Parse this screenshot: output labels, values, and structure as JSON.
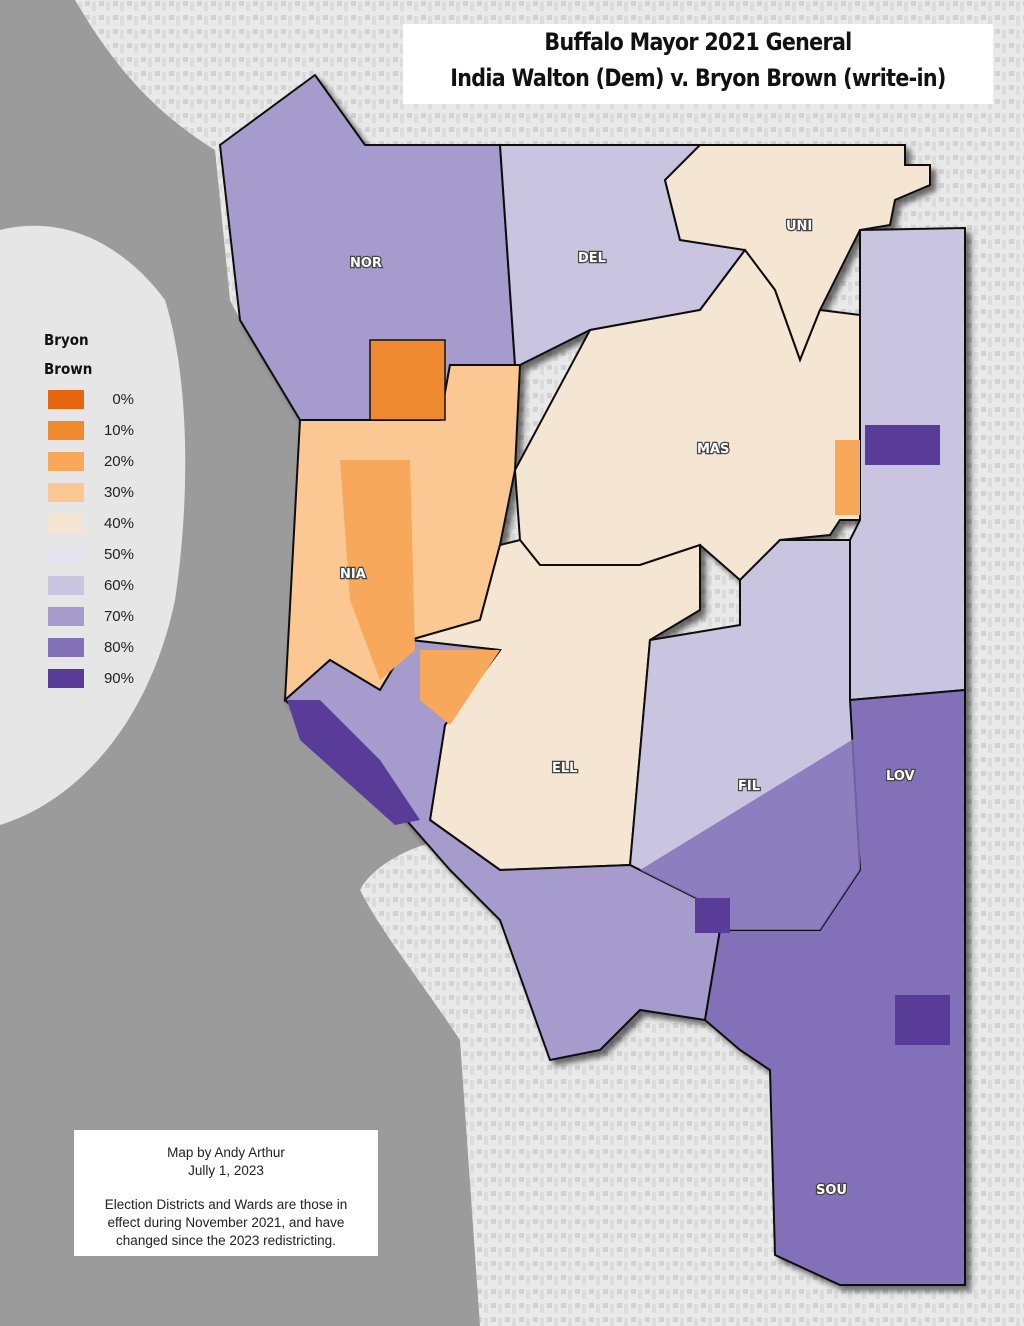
{
  "title": {
    "line1": "Buffalo Mayor 2021 General",
    "line2": "India Walton (Dem) v. Bryon Brown (write-in)"
  },
  "legend": {
    "title_line1": "Bryon",
    "title_line2": "Brown",
    "entries": [
      {
        "label": "0%",
        "color": "#e8650f"
      },
      {
        "label": "10%",
        "color": "#f08a30"
      },
      {
        "label": "20%",
        "color": "#f7a85a"
      },
      {
        "label": "30%",
        "color": "#fbc893"
      },
      {
        "label": "40%",
        "color": "#f5e6d4"
      },
      {
        "label": "50%",
        "color": "#e5e4f0"
      },
      {
        "label": "60%",
        "color": "#c9c5e1"
      },
      {
        "label": "70%",
        "color": "#a59bcd"
      },
      {
        "label": "80%",
        "color": "#8271b9"
      },
      {
        "label": "90%",
        "color": "#593c98"
      }
    ]
  },
  "wards": [
    {
      "label": "NOR"
    },
    {
      "label": "DEL"
    },
    {
      "label": "UNI"
    },
    {
      "label": "MAS"
    },
    {
      "label": "NIA"
    },
    {
      "label": "ELL"
    },
    {
      "label": "FIL"
    },
    {
      "label": "LOV"
    },
    {
      "label": "SOU"
    }
  ],
  "credit": {
    "line1": "Map by Andy Arthur",
    "line2": "Jully 1, 2023",
    "note1": "Election Districts and Wards are those in",
    "note2": "effect during November 2021, and have",
    "note3": "changed since the 2023 redistricting."
  },
  "colors": {
    "water": "#9b9b9b",
    "land": "#e6e6e6",
    "boundary": "#111111"
  }
}
